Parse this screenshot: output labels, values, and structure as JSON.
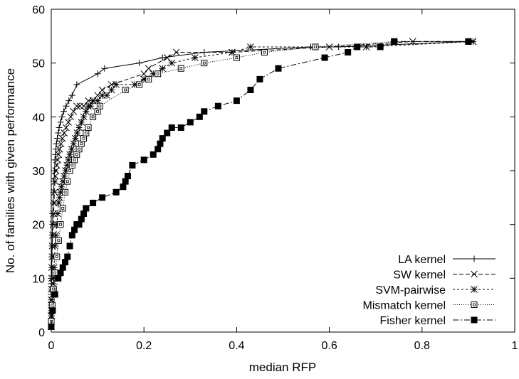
{
  "chart_data": {
    "type": "line",
    "xlabel": "median RFP",
    "ylabel": "No. of families with given performance",
    "xlim": [
      0,
      1
    ],
    "ylim": [
      0,
      60
    ],
    "xticks": [
      0,
      0.2,
      0.4,
      0.6,
      0.8,
      1
    ],
    "xtick_labels": [
      "0",
      "0.2",
      "0.4",
      "0.6",
      "0.8",
      "1"
    ],
    "yticks": [
      0,
      10,
      20,
      30,
      40,
      50,
      60
    ],
    "ytick_labels": [
      "0",
      "10",
      "20",
      "30",
      "40",
      "50",
      "60"
    ],
    "grid": false,
    "legend_position": "bottom-right",
    "series": [
      {
        "name": "LA kernel",
        "marker": "plus",
        "dash": "",
        "x": [
          0.0,
          0.0,
          0.0,
          0.0,
          0.0,
          0.0,
          0.0,
          0.0,
          0.0,
          0.0,
          0.001,
          0.001,
          0.002,
          0.002,
          0.003,
          0.003,
          0.004,
          0.005,
          0.006,
          0.007,
          0.008,
          0.009,
          0.01,
          0.011,
          0.013,
          0.015,
          0.017,
          0.02,
          0.023,
          0.027,
          0.032,
          0.038,
          0.045,
          0.055,
          0.1,
          0.115,
          0.19,
          0.24,
          0.33,
          0.56,
          0.62,
          0.9
        ],
        "y": [
          1,
          2,
          3,
          4,
          5,
          6,
          7,
          8,
          9,
          10,
          12,
          14,
          16,
          18,
          20,
          22,
          24,
          26,
          28,
          30,
          32,
          33,
          34,
          35,
          36,
          37,
          38,
          39,
          40,
          41,
          42,
          43,
          44,
          46,
          48,
          49,
          50,
          51,
          52,
          53,
          53,
          54
        ]
      },
      {
        "name": "SW kernel",
        "marker": "x",
        "dash": "6,3",
        "x": [
          0.0,
          0.0,
          0.0,
          0.0,
          0.0,
          0.0,
          0.001,
          0.001,
          0.002,
          0.002,
          0.003,
          0.004,
          0.005,
          0.006,
          0.007,
          0.008,
          0.009,
          0.01,
          0.012,
          0.014,
          0.016,
          0.018,
          0.021,
          0.024,
          0.028,
          0.032,
          0.037,
          0.042,
          0.048,
          0.055,
          0.062,
          0.07,
          0.08,
          0.09,
          0.1,
          0.11,
          0.13,
          0.2,
          0.21,
          0.25,
          0.27,
          0.39,
          0.6,
          0.78,
          0.91
        ],
        "y": [
          1,
          2,
          3,
          4,
          6,
          8,
          10,
          12,
          14,
          16,
          18,
          20,
          22,
          24,
          26,
          28,
          29,
          30,
          31,
          32,
          33,
          34,
          35,
          36,
          37,
          38,
          39,
          40,
          41,
          42,
          42,
          42,
          43,
          43,
          44,
          45,
          46,
          48,
          49,
          51,
          52,
          52,
          53,
          54,
          54
        ]
      },
      {
        "name": "SVM-pairwise",
        "marker": "star",
        "dash": "3,3",
        "x": [
          0.0,
          0.001,
          0.002,
          0.003,
          0.004,
          0.005,
          0.006,
          0.007,
          0.008,
          0.01,
          0.012,
          0.014,
          0.016,
          0.018,
          0.02,
          0.022,
          0.025,
          0.028,
          0.031,
          0.034,
          0.037,
          0.04,
          0.044,
          0.048,
          0.052,
          0.056,
          0.06,
          0.065,
          0.07,
          0.075,
          0.08,
          0.085,
          0.09,
          0.1,
          0.11,
          0.12,
          0.13,
          0.14,
          0.18,
          0.2,
          0.22,
          0.24,
          0.26,
          0.31,
          0.39,
          0.43,
          0.68,
          0.91
        ],
        "y": [
          1,
          3,
          5,
          7,
          9,
          10,
          12,
          14,
          16,
          18,
          20,
          22,
          24,
          25,
          26,
          27,
          28,
          29,
          30,
          31,
          32,
          33,
          34,
          35,
          36,
          37,
          38,
          39,
          40,
          41,
          42,
          42,
          43,
          43,
          44,
          44,
          45,
          46,
          46,
          47,
          48,
          49,
          50,
          51,
          52,
          53,
          53,
          54
        ]
      },
      {
        "name": "Mismatch kernel",
        "marker": "square-open",
        "dash": "1,2",
        "x": [
          0.0,
          0.002,
          0.005,
          0.008,
          0.012,
          0.016,
          0.02,
          0.025,
          0.03,
          0.035,
          0.04,
          0.045,
          0.05,
          0.055,
          0.06,
          0.065,
          0.07,
          0.075,
          0.08,
          0.09,
          0.1,
          0.105,
          0.16,
          0.19,
          0.21,
          0.23,
          0.28,
          0.33,
          0.4,
          0.46,
          0.57,
          0.74,
          0.9
        ],
        "y": [
          2,
          5,
          8,
          11,
          14,
          17,
          20,
          23,
          26,
          28,
          30,
          31,
          32,
          33,
          34,
          35,
          36,
          37,
          38,
          40,
          41,
          42,
          45,
          46,
          47,
          48,
          49,
          50,
          51,
          52,
          53,
          54,
          54
        ]
      },
      {
        "name": "Fisher kernel",
        "marker": "square-filled",
        "dash": "8,3,2,3",
        "x": [
          0.0,
          0.003,
          0.008,
          0.015,
          0.02,
          0.025,
          0.03,
          0.035,
          0.04,
          0.045,
          0.05,
          0.055,
          0.06,
          0.065,
          0.07,
          0.075,
          0.09,
          0.11,
          0.14,
          0.155,
          0.16,
          0.165,
          0.175,
          0.2,
          0.22,
          0.23,
          0.235,
          0.24,
          0.25,
          0.26,
          0.28,
          0.3,
          0.32,
          0.33,
          0.36,
          0.4,
          0.43,
          0.45,
          0.49,
          0.59,
          0.64,
          0.66,
          0.71,
          0.74,
          0.9
        ],
        "y": [
          1,
          4,
          7,
          10,
          11,
          12,
          13,
          14,
          16,
          18,
          19,
          20,
          20,
          21,
          22,
          23,
          24,
          25,
          26,
          27,
          28,
          29,
          31,
          32,
          33,
          34,
          35,
          36,
          37,
          38,
          38,
          39,
          40,
          41,
          42,
          43,
          45,
          47,
          49,
          51,
          52,
          53,
          53,
          54,
          54
        ]
      }
    ]
  }
}
